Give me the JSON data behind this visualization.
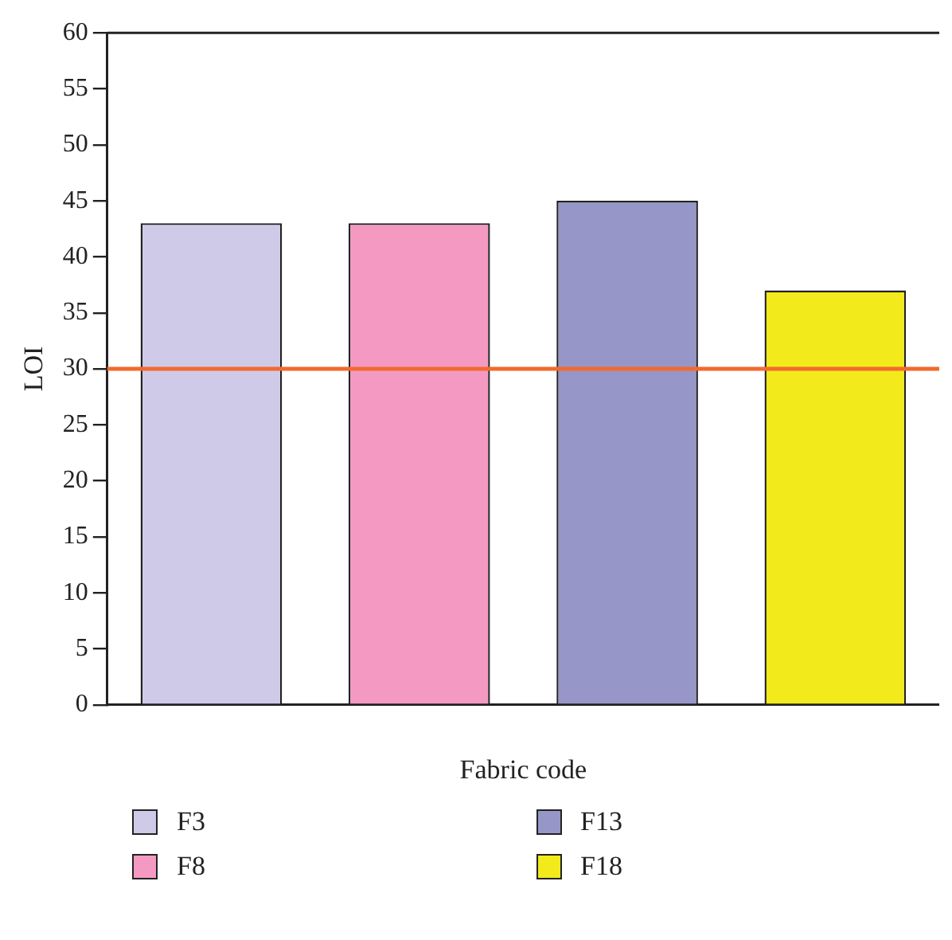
{
  "chart_data": {
    "type": "bar",
    "xlabel": "Fabric code",
    "ylabel": "LOI",
    "categories": [
      null,
      null,
      null,
      null
    ],
    "series": [
      {
        "name": "F3",
        "color": "#cecae8",
        "values": [
          43,
          null,
          null,
          null
        ]
      },
      {
        "name": "F8",
        "color": "#f49ac2",
        "values": [
          null,
          43,
          null,
          null
        ]
      },
      {
        "name": "F13",
        "color": "#9696c8",
        "values": [
          null,
          null,
          45,
          null
        ]
      },
      {
        "name": "F18",
        "color": "#f2ea1a",
        "values": [
          null,
          null,
          null,
          37
        ]
      }
    ],
    "ylim": [
      0,
      60
    ],
    "yticks": [
      0,
      5,
      10,
      15,
      20,
      25,
      30,
      35,
      40,
      45,
      50,
      55,
      60
    ],
    "ref_lines": [
      {
        "axis": "y",
        "value": 30,
        "color": "#f26a2e"
      }
    ],
    "grid": false,
    "legend": "bottom"
  }
}
